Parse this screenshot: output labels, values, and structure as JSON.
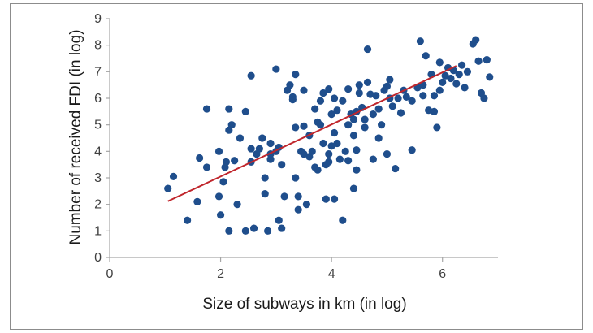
{
  "chart_data": {
    "type": "scatter",
    "title": "",
    "xlabel": "Size of subways in km (in log)",
    "ylabel": "Number of received FDI (in log)",
    "xlim": [
      0,
      7
    ],
    "ylim": [
      0,
      9
    ],
    "xticks": [
      0,
      2,
      4,
      6
    ],
    "yticks": [
      0,
      1,
      2,
      3,
      4,
      5,
      6,
      7,
      8,
      9
    ],
    "grid": false,
    "legend": "none",
    "marker_color": "#1f4e8c",
    "trendline_color": "#c0262c",
    "trendline": {
      "x": [
        1.05,
        6.25
      ],
      "y": [
        2.12,
        7.22
      ]
    },
    "points": [
      [
        1.05,
        2.6
      ],
      [
        1.15,
        3.05
      ],
      [
        1.4,
        1.4
      ],
      [
        1.58,
        2.1
      ],
      [
        1.62,
        3.75
      ],
      [
        1.75,
        3.4
      ],
      [
        1.75,
        5.6
      ],
      [
        1.97,
        2.3
      ],
      [
        1.97,
        4.0
      ],
      [
        2.0,
        1.6
      ],
      [
        2.05,
        2.85
      ],
      [
        2.08,
        3.4
      ],
      [
        2.1,
        3.6
      ],
      [
        2.15,
        1.0
      ],
      [
        2.15,
        4.8
      ],
      [
        2.15,
        5.6
      ],
      [
        2.2,
        5.0
      ],
      [
        2.25,
        3.65
      ],
      [
        2.3,
        2.0
      ],
      [
        2.35,
        4.5
      ],
      [
        2.45,
        5.5
      ],
      [
        2.45,
        1.0
      ],
      [
        2.55,
        3.6
      ],
      [
        2.55,
        4.1
      ],
      [
        2.55,
        6.85
      ],
      [
        2.6,
        1.1
      ],
      [
        2.65,
        3.9
      ],
      [
        2.7,
        4.1
      ],
      [
        2.75,
        4.5
      ],
      [
        2.8,
        3.0
      ],
      [
        2.8,
        2.4
      ],
      [
        2.85,
        1.0
      ],
      [
        2.9,
        3.9
      ],
      [
        2.9,
        4.3
      ],
      [
        2.9,
        3.7
      ],
      [
        3.0,
        7.1
      ],
      [
        3.0,
        4.0
      ],
      [
        3.05,
        4.15
      ],
      [
        3.05,
        1.4
      ],
      [
        3.1,
        1.1
      ],
      [
        3.1,
        3.5
      ],
      [
        3.15,
        2.3
      ],
      [
        3.2,
        6.3
      ],
      [
        3.25,
        6.5
      ],
      [
        3.3,
        6.05
      ],
      [
        3.3,
        5.95
      ],
      [
        3.35,
        6.9
      ],
      [
        3.35,
        4.9
      ],
      [
        3.35,
        3.0
      ],
      [
        3.4,
        2.3
      ],
      [
        3.4,
        1.8
      ],
      [
        3.45,
        4.0
      ],
      [
        3.5,
        6.3
      ],
      [
        3.5,
        4.95
      ],
      [
        3.5,
        3.9
      ],
      [
        3.55,
        2.0
      ],
      [
        3.6,
        4.6
      ],
      [
        3.6,
        3.8
      ],
      [
        3.65,
        4.0
      ],
      [
        3.7,
        5.6
      ],
      [
        3.7,
        3.4
      ],
      [
        3.75,
        5.1
      ],
      [
        3.75,
        3.3
      ],
      [
        3.8,
        5.9
      ],
      [
        3.8,
        5.0
      ],
      [
        3.85,
        6.2
      ],
      [
        3.85,
        4.3
      ],
      [
        3.9,
        3.5
      ],
      [
        3.9,
        2.2
      ],
      [
        3.95,
        6.35
      ],
      [
        3.95,
        3.9
      ],
      [
        3.95,
        3.6
      ],
      [
        4.0,
        5.4
      ],
      [
        4.0,
        4.2
      ],
      [
        4.05,
        6.0
      ],
      [
        4.05,
        4.7
      ],
      [
        4.05,
        2.2
      ],
      [
        4.1,
        5.55
      ],
      [
        4.1,
        4.3
      ],
      [
        4.15,
        3.7
      ],
      [
        4.2,
        1.4
      ],
      [
        4.2,
        5.9
      ],
      [
        4.25,
        4.0
      ],
      [
        4.3,
        6.35
      ],
      [
        4.3,
        5.0
      ],
      [
        4.3,
        3.65
      ],
      [
        4.35,
        5.4
      ],
      [
        4.4,
        5.2
      ],
      [
        4.4,
        4.6
      ],
      [
        4.4,
        2.6
      ],
      [
        4.45,
        5.5
      ],
      [
        4.45,
        4.05
      ],
      [
        4.45,
        3.3
      ],
      [
        4.5,
        6.2
      ],
      [
        4.5,
        6.5
      ],
      [
        4.55,
        5.65
      ],
      [
        4.6,
        4.9
      ],
      [
        4.6,
        5.2
      ],
      [
        4.65,
        6.6
      ],
      [
        4.65,
        7.85
      ],
      [
        4.7,
        6.15
      ],
      [
        4.75,
        5.4
      ],
      [
        4.75,
        3.7
      ],
      [
        4.8,
        6.1
      ],
      [
        4.85,
        5.6
      ],
      [
        4.85,
        4.5
      ],
      [
        4.9,
        5.0
      ],
      [
        4.95,
        6.3
      ],
      [
        5.0,
        6.45
      ],
      [
        5.0,
        3.9
      ],
      [
        5.05,
        6.7
      ],
      [
        5.05,
        6.0
      ],
      [
        5.1,
        5.7
      ],
      [
        5.15,
        3.35
      ],
      [
        5.2,
        6.0
      ],
      [
        5.25,
        5.45
      ],
      [
        5.3,
        6.3
      ],
      [
        5.35,
        6.05
      ],
      [
        5.45,
        5.9
      ],
      [
        5.45,
        4.05
      ],
      [
        5.55,
        6.4
      ],
      [
        5.6,
        8.15
      ],
      [
        5.65,
        6.1
      ],
      [
        5.65,
        6.5
      ],
      [
        5.7,
        7.6
      ],
      [
        5.75,
        5.55
      ],
      [
        5.8,
        6.9
      ],
      [
        5.85,
        5.5
      ],
      [
        5.85,
        6.1
      ],
      [
        5.9,
        4.9
      ],
      [
        5.95,
        7.35
      ],
      [
        5.95,
        6.3
      ],
      [
        6.0,
        6.6
      ],
      [
        6.05,
        6.85
      ],
      [
        6.1,
        7.15
      ],
      [
        6.15,
        6.75
      ],
      [
        6.2,
        7.05
      ],
      [
        6.25,
        6.55
      ],
      [
        6.3,
        6.9
      ],
      [
        6.35,
        7.25
      ],
      [
        6.4,
        6.4
      ],
      [
        6.45,
        7.0
      ],
      [
        6.55,
        8.05
      ],
      [
        6.6,
        8.2
      ],
      [
        6.65,
        7.4
      ],
      [
        6.7,
        6.2
      ],
      [
        6.75,
        6.0
      ],
      [
        6.8,
        7.45
      ],
      [
        6.85,
        6.8
      ]
    ]
  }
}
